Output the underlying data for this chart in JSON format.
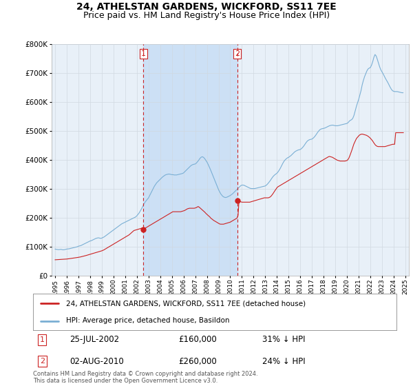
{
  "title": "24, ATHELSTAN GARDENS, WICKFORD, SS11 7EE",
  "subtitle": "Price paid vs. HM Land Registry's House Price Index (HPI)",
  "title_fontsize": 10,
  "subtitle_fontsize": 9,
  "background_color": "#ffffff",
  "plot_bg_color": "#e8f0f8",
  "grid_color": "#d0d8e0",
  "shade_color": "#cce0f5",
  "legend_label_red": "24, ATHELSTAN GARDENS, WICKFORD, SS11 7EE (detached house)",
  "legend_label_blue": "HPI: Average price, detached house, Basildon",
  "footnote": "Contains HM Land Registry data © Crown copyright and database right 2024.\nThis data is licensed under the Open Government Licence v3.0.",
  "event1_label": "1",
  "event1_date": "25-JUL-2002",
  "event1_price": "£160,000",
  "event1_note": "31% ↓ HPI",
  "event2_label": "2",
  "event2_date": "02-AUG-2010",
  "event2_price": "£260,000",
  "event2_note": "24% ↓ HPI",
  "event1_x": 2002.57,
  "event2_x": 2010.59,
  "event1_y": 160000,
  "event2_y": 260000,
  "ylim": [
    0,
    800000
  ],
  "xlim_start": 1994.7,
  "xlim_end": 2025.3,
  "hpi_color": "#7aafd4",
  "price_color": "#cc2222",
  "vline_color": "#cc2222",
  "hpi_x": [
    1995.0,
    1995.1,
    1995.2,
    1995.3,
    1995.4,
    1995.5,
    1995.6,
    1995.7,
    1995.8,
    1995.9,
    1996.0,
    1996.1,
    1996.2,
    1996.3,
    1996.4,
    1996.5,
    1996.6,
    1996.7,
    1996.8,
    1996.9,
    1997.0,
    1997.1,
    1997.2,
    1997.3,
    1997.4,
    1997.5,
    1997.6,
    1997.7,
    1997.8,
    1997.9,
    1998.0,
    1998.1,
    1998.2,
    1998.3,
    1998.4,
    1998.5,
    1998.6,
    1998.7,
    1998.8,
    1998.9,
    1999.0,
    1999.1,
    1999.2,
    1999.3,
    1999.4,
    1999.5,
    1999.6,
    1999.7,
    1999.8,
    1999.9,
    2000.0,
    2000.1,
    2000.2,
    2000.3,
    2000.4,
    2000.5,
    2000.6,
    2000.7,
    2000.8,
    2000.9,
    2001.0,
    2001.1,
    2001.2,
    2001.3,
    2001.4,
    2001.5,
    2001.6,
    2001.7,
    2001.8,
    2001.9,
    2002.0,
    2002.1,
    2002.2,
    2002.3,
    2002.4,
    2002.5,
    2002.6,
    2002.7,
    2002.8,
    2002.9,
    2003.0,
    2003.1,
    2003.2,
    2003.3,
    2003.4,
    2003.5,
    2003.6,
    2003.7,
    2003.8,
    2003.9,
    2004.0,
    2004.1,
    2004.2,
    2004.3,
    2004.4,
    2004.5,
    2004.6,
    2004.7,
    2004.8,
    2004.9,
    2005.0,
    2005.1,
    2005.2,
    2005.3,
    2005.4,
    2005.5,
    2005.6,
    2005.7,
    2005.8,
    2005.9,
    2006.0,
    2006.1,
    2006.2,
    2006.3,
    2006.4,
    2006.5,
    2006.6,
    2006.7,
    2006.8,
    2006.9,
    2007.0,
    2007.1,
    2007.2,
    2007.3,
    2007.4,
    2007.5,
    2007.6,
    2007.7,
    2007.8,
    2007.9,
    2008.0,
    2008.1,
    2008.2,
    2008.3,
    2008.4,
    2008.5,
    2008.6,
    2008.7,
    2008.8,
    2008.9,
    2009.0,
    2009.1,
    2009.2,
    2009.3,
    2009.4,
    2009.5,
    2009.6,
    2009.7,
    2009.8,
    2009.9,
    2010.0,
    2010.1,
    2010.2,
    2010.3,
    2010.4,
    2010.5,
    2010.6,
    2010.7,
    2010.8,
    2010.9,
    2011.0,
    2011.1,
    2011.2,
    2011.3,
    2011.4,
    2011.5,
    2011.6,
    2011.7,
    2011.8,
    2011.9,
    2012.0,
    2012.1,
    2012.2,
    2012.3,
    2012.4,
    2012.5,
    2012.6,
    2012.7,
    2012.8,
    2012.9,
    2013.0,
    2013.1,
    2013.2,
    2013.3,
    2013.4,
    2013.5,
    2013.6,
    2013.7,
    2013.8,
    2013.9,
    2014.0,
    2014.1,
    2014.2,
    2014.3,
    2014.4,
    2014.5,
    2014.6,
    2014.7,
    2014.8,
    2014.9,
    2015.0,
    2015.1,
    2015.2,
    2015.3,
    2015.4,
    2015.5,
    2015.6,
    2015.7,
    2015.8,
    2015.9,
    2016.0,
    2016.1,
    2016.2,
    2016.3,
    2016.4,
    2016.5,
    2016.6,
    2016.7,
    2016.8,
    2016.9,
    2017.0,
    2017.1,
    2017.2,
    2017.3,
    2017.4,
    2017.5,
    2017.6,
    2017.7,
    2017.8,
    2017.9,
    2018.0,
    2018.1,
    2018.2,
    2018.3,
    2018.4,
    2018.5,
    2018.6,
    2018.7,
    2018.8,
    2018.9,
    2019.0,
    2019.1,
    2019.2,
    2019.3,
    2019.4,
    2019.5,
    2019.6,
    2019.7,
    2019.8,
    2019.9,
    2020.0,
    2020.1,
    2020.2,
    2020.3,
    2020.4,
    2020.5,
    2020.6,
    2020.7,
    2020.8,
    2020.9,
    2021.0,
    2021.1,
    2021.2,
    2021.3,
    2021.4,
    2021.5,
    2021.6,
    2021.7,
    2021.8,
    2021.9,
    2022.0,
    2022.1,
    2022.2,
    2022.3,
    2022.4,
    2022.5,
    2022.6,
    2022.7,
    2022.8,
    2022.9,
    2023.0,
    2023.1,
    2023.2,
    2023.3,
    2023.4,
    2023.5,
    2023.6,
    2023.7,
    2023.8,
    2023.9,
    2024.0,
    2024.1,
    2024.2,
    2024.3,
    2024.4,
    2024.5,
    2024.6,
    2024.7,
    2024.8
  ],
  "hpi_y": [
    93000,
    92000,
    91500,
    91000,
    91500,
    92000,
    91000,
    90500,
    91000,
    92000,
    93000,
    93500,
    94000,
    95000,
    96000,
    97000,
    98000,
    99000,
    100000,
    101000,
    103000,
    104000,
    105000,
    107000,
    109000,
    111000,
    113000,
    115000,
    117000,
    119000,
    121000,
    122000,
    124000,
    126000,
    128000,
    130000,
    131000,
    132000,
    131000,
    130000,
    131000,
    133000,
    135000,
    138000,
    141000,
    144000,
    147000,
    150000,
    153000,
    156000,
    159000,
    162000,
    165000,
    168000,
    171000,
    174000,
    177000,
    180000,
    182000,
    184000,
    186000,
    188000,
    190000,
    192000,
    194000,
    196000,
    198000,
    200000,
    202000,
    204000,
    208000,
    213000,
    218000,
    225000,
    232000,
    240000,
    248000,
    255000,
    260000,
    265000,
    270000,
    278000,
    286000,
    294000,
    302000,
    310000,
    316000,
    322000,
    326000,
    330000,
    334000,
    338000,
    342000,
    345000,
    348000,
    350000,
    351000,
    352000,
    352000,
    351000,
    350000,
    350000,
    349000,
    349000,
    349000,
    350000,
    351000,
    352000,
    353000,
    354000,
    356000,
    360000,
    364000,
    368000,
    372000,
    376000,
    380000,
    383000,
    385000,
    386000,
    387000,
    390000,
    395000,
    400000,
    406000,
    410000,
    412000,
    410000,
    406000,
    400000,
    394000,
    386000,
    377000,
    368000,
    358000,
    348000,
    338000,
    328000,
    318000,
    308000,
    298000,
    290000,
    283000,
    278000,
    274000,
    272000,
    271000,
    272000,
    274000,
    276000,
    278000,
    281000,
    284000,
    288000,
    292000,
    296000,
    300000,
    304000,
    308000,
    312000,
    314000,
    314000,
    313000,
    311000,
    309000,
    307000,
    305000,
    303000,
    302000,
    302000,
    302000,
    302000,
    303000,
    304000,
    305000,
    306000,
    307000,
    308000,
    309000,
    310000,
    311000,
    314000,
    318000,
    323000,
    328000,
    334000,
    340000,
    345000,
    349000,
    352000,
    355000,
    360000,
    366000,
    373000,
    381000,
    389000,
    396000,
    401000,
    405000,
    408000,
    410000,
    413000,
    416000,
    420000,
    424000,
    428000,
    431000,
    433000,
    435000,
    436000,
    437000,
    440000,
    444000,
    449000,
    455000,
    461000,
    466000,
    469000,
    471000,
    472000,
    473000,
    476000,
    480000,
    485000,
    491000,
    497000,
    502000,
    506000,
    508000,
    509000,
    510000,
    511000,
    513000,
    515000,
    517000,
    519000,
    520000,
    521000,
    521000,
    520000,
    519000,
    519000,
    519000,
    520000,
    521000,
    522000,
    523000,
    524000,
    525000,
    526000,
    527000,
    530000,
    535000,
    538000,
    540000,
    545000,
    555000,
    570000,
    585000,
    598000,
    610000,
    625000,
    640000,
    660000,
    675000,
    688000,
    698000,
    708000,
    715000,
    718000,
    720000,
    728000,
    740000,
    755000,
    765000,
    760000,
    748000,
    735000,
    722000,
    712000,
    705000,
    698000,
    690000,
    682000,
    675000,
    668000,
    660000,
    652000,
    645000,
    640000,
    638000,
    637000,
    637000,
    637000,
    636000,
    635000,
    634000,
    633000,
    633000
  ],
  "price_x": [
    1995.0,
    1995.08,
    1995.17,
    1995.25,
    1995.33,
    1995.42,
    1995.5,
    1995.58,
    1995.67,
    1995.75,
    1995.83,
    1995.92,
    1996.0,
    1996.08,
    1996.17,
    1996.25,
    1996.33,
    1996.42,
    1996.5,
    1996.58,
    1996.67,
    1996.75,
    1996.83,
    1996.92,
    1997.0,
    1997.08,
    1997.17,
    1997.25,
    1997.33,
    1997.42,
    1997.5,
    1997.58,
    1997.67,
    1997.75,
    1997.83,
    1997.92,
    1998.0,
    1998.08,
    1998.17,
    1998.25,
    1998.33,
    1998.42,
    1998.5,
    1998.58,
    1998.67,
    1998.75,
    1998.83,
    1998.92,
    1999.0,
    1999.08,
    1999.17,
    1999.25,
    1999.33,
    1999.42,
    1999.5,
    1999.58,
    1999.67,
    1999.75,
    1999.83,
    1999.92,
    2000.0,
    2000.08,
    2000.17,
    2000.25,
    2000.33,
    2000.42,
    2000.5,
    2000.58,
    2000.67,
    2000.75,
    2000.83,
    2000.92,
    2001.0,
    2001.08,
    2001.17,
    2001.25,
    2001.33,
    2001.42,
    2001.5,
    2001.58,
    2001.67,
    2001.75,
    2001.83,
    2001.92,
    2002.0,
    2002.08,
    2002.17,
    2002.25,
    2002.33,
    2002.42,
    2002.5,
    2002.58,
    2002.67,
    2002.75,
    2002.83,
    2002.92,
    2003.0,
    2003.08,
    2003.17,
    2003.25,
    2003.33,
    2003.42,
    2003.5,
    2003.58,
    2003.67,
    2003.75,
    2003.83,
    2003.92,
    2004.0,
    2004.08,
    2004.17,
    2004.25,
    2004.33,
    2004.42,
    2004.5,
    2004.58,
    2004.67,
    2004.75,
    2004.83,
    2004.92,
    2005.0,
    2005.08,
    2005.17,
    2005.25,
    2005.33,
    2005.42,
    2005.5,
    2005.58,
    2005.67,
    2005.75,
    2005.83,
    2005.92,
    2006.0,
    2006.08,
    2006.17,
    2006.25,
    2006.33,
    2006.42,
    2006.5,
    2006.58,
    2006.67,
    2006.75,
    2006.83,
    2006.92,
    2007.0,
    2007.08,
    2007.17,
    2007.25,
    2007.33,
    2007.42,
    2007.5,
    2007.58,
    2007.67,
    2007.75,
    2007.83,
    2007.92,
    2008.0,
    2008.08,
    2008.17,
    2008.25,
    2008.33,
    2008.42,
    2008.5,
    2008.58,
    2008.67,
    2008.75,
    2008.83,
    2008.92,
    2009.0,
    2009.08,
    2009.17,
    2009.25,
    2009.33,
    2009.42,
    2009.5,
    2009.58,
    2009.67,
    2009.75,
    2009.83,
    2009.92,
    2010.0,
    2010.08,
    2010.17,
    2010.25,
    2010.33,
    2010.42,
    2010.5,
    2010.58,
    2010.67,
    2010.75,
    2010.83,
    2010.92,
    2011.0,
    2011.08,
    2011.17,
    2011.25,
    2011.33,
    2011.42,
    2011.5,
    2011.58,
    2011.67,
    2011.75,
    2011.83,
    2011.92,
    2012.0,
    2012.08,
    2012.17,
    2012.25,
    2012.33,
    2012.42,
    2012.5,
    2012.58,
    2012.67,
    2012.75,
    2012.83,
    2012.92,
    2013.0,
    2013.08,
    2013.17,
    2013.25,
    2013.33,
    2013.42,
    2013.5,
    2013.58,
    2013.67,
    2013.75,
    2013.83,
    2013.92,
    2014.0,
    2014.08,
    2014.17,
    2014.25,
    2014.33,
    2014.42,
    2014.5,
    2014.58,
    2014.67,
    2014.75,
    2014.83,
    2014.92,
    2015.0,
    2015.08,
    2015.17,
    2015.25,
    2015.33,
    2015.42,
    2015.5,
    2015.58,
    2015.67,
    2015.75,
    2015.83,
    2015.92,
    2016.0,
    2016.08,
    2016.17,
    2016.25,
    2016.33,
    2016.42,
    2016.5,
    2016.58,
    2016.67,
    2016.75,
    2016.83,
    2016.92,
    2017.0,
    2017.08,
    2017.17,
    2017.25,
    2017.33,
    2017.42,
    2017.5,
    2017.58,
    2017.67,
    2017.75,
    2017.83,
    2017.92,
    2018.0,
    2018.08,
    2018.17,
    2018.25,
    2018.33,
    2018.42,
    2018.5,
    2018.58,
    2018.67,
    2018.75,
    2018.83,
    2018.92,
    2019.0,
    2019.08,
    2019.17,
    2019.25,
    2019.33,
    2019.42,
    2019.5,
    2019.58,
    2019.67,
    2019.75,
    2019.83,
    2019.92,
    2020.0,
    2020.08,
    2020.17,
    2020.25,
    2020.33,
    2020.42,
    2020.5,
    2020.58,
    2020.67,
    2020.75,
    2020.83,
    2020.92,
    2021.0,
    2021.08,
    2021.17,
    2021.25,
    2021.33,
    2021.42,
    2021.5,
    2021.58,
    2021.67,
    2021.75,
    2021.83,
    2021.92,
    2022.0,
    2022.08,
    2022.17,
    2022.25,
    2022.33,
    2022.42,
    2022.5,
    2022.58,
    2022.67,
    2022.75,
    2022.83,
    2022.92,
    2023.0,
    2023.08,
    2023.17,
    2023.25,
    2023.33,
    2023.42,
    2023.5,
    2023.58,
    2023.67,
    2023.75,
    2023.83,
    2023.92,
    2024.0,
    2024.08,
    2024.17,
    2024.25,
    2024.33,
    2024.42,
    2024.5,
    2024.58,
    2024.67,
    2024.75,
    2024.83
  ],
  "price_y": [
    56000,
    56200,
    56400,
    56600,
    56800,
    57000,
    57200,
    57400,
    57600,
    57800,
    58000,
    58200,
    58600,
    59000,
    59500,
    60000,
    60500,
    61000,
    61500,
    62000,
    62500,
    63000,
    63500,
    64000,
    64500,
    65000,
    65800,
    66600,
    67400,
    68200,
    69000,
    70000,
    71000,
    72000,
    73000,
    74000,
    75000,
    76000,
    77000,
    78000,
    79000,
    80000,
    81000,
    82000,
    83000,
    84000,
    85000,
    86000,
    87000,
    88500,
    90000,
    92000,
    94000,
    96000,
    98000,
    100000,
    102000,
    104000,
    106000,
    108000,
    110000,
    112000,
    114000,
    116000,
    118000,
    120000,
    122000,
    124000,
    126000,
    128000,
    130000,
    132000,
    134000,
    136000,
    138000,
    140000,
    142000,
    145000,
    148000,
    151000,
    154000,
    157000,
    158000,
    159000,
    160000,
    161000,
    162000,
    163000,
    164000,
    165000,
    166000,
    160000,
    164000,
    166000,
    168000,
    170000,
    172000,
    174000,
    176000,
    178000,
    180000,
    182000,
    184000,
    186000,
    188000,
    190000,
    192000,
    194000,
    196000,
    198000,
    200000,
    202000,
    204000,
    206000,
    208000,
    210000,
    212000,
    214000,
    216000,
    218000,
    220000,
    222000,
    222000,
    222000,
    222000,
    222000,
    222000,
    222000,
    222000,
    222000,
    223000,
    224000,
    225000,
    226000,
    228000,
    230000,
    232000,
    233000,
    234000,
    234000,
    234000,
    234000,
    234000,
    234000,
    235000,
    236000,
    238000,
    240000,
    238000,
    235000,
    232000,
    229000,
    226000,
    223000,
    220000,
    216000,
    213000,
    210000,
    207000,
    204000,
    200000,
    197000,
    194000,
    192000,
    190000,
    188000,
    186000,
    184000,
    182000,
    180000,
    179000,
    179000,
    179000,
    179000,
    180000,
    181000,
    182000,
    183000,
    184000,
    185000,
    186000,
    188000,
    190000,
    192000,
    194000,
    196000,
    198000,
    200000,
    210000,
    260000,
    258000,
    256000,
    255000,
    255000,
    255000,
    255000,
    255000,
    255000,
    255000,
    255000,
    255000,
    256000,
    257000,
    258000,
    259000,
    260000,
    261000,
    262000,
    263000,
    264000,
    265000,
    266000,
    267000,
    268000,
    269000,
    270000,
    270000,
    270000,
    270000,
    270000,
    271000,
    273000,
    276000,
    280000,
    285000,
    290000,
    295000,
    300000,
    305000,
    308000,
    310000,
    312000,
    314000,
    316000,
    318000,
    320000,
    322000,
    324000,
    326000,
    328000,
    330000,
    332000,
    334000,
    336000,
    338000,
    340000,
    342000,
    344000,
    346000,
    348000,
    350000,
    352000,
    354000,
    356000,
    358000,
    360000,
    362000,
    364000,
    366000,
    368000,
    370000,
    372000,
    374000,
    376000,
    378000,
    380000,
    382000,
    384000,
    386000,
    388000,
    390000,
    392000,
    394000,
    396000,
    398000,
    400000,
    402000,
    404000,
    406000,
    408000,
    410000,
    412000,
    413000,
    412000,
    411000,
    410000,
    408000,
    406000,
    404000,
    402000,
    400000,
    399000,
    398000,
    397000,
    397000,
    397000,
    397000,
    397000,
    397000,
    398000,
    399000,
    402000,
    408000,
    416000,
    425000,
    435000,
    445000,
    455000,
    463000,
    470000,
    476000,
    480000,
    484000,
    487000,
    489000,
    490000,
    490000,
    489000,
    488000,
    487000,
    486000,
    484000,
    482000,
    479000,
    476000,
    472000,
    468000,
    463000,
    458000,
    453000,
    450000,
    448000,
    447000,
    447000,
    447000,
    447000,
    447000,
    447000,
    447000,
    447000,
    448000,
    449000,
    450000,
    451000,
    452000,
    453000,
    454000,
    455000,
    455000,
    455000,
    495000,
    495000,
    495000,
    495000,
    495000,
    495000,
    495000,
    495000,
    495000
  ]
}
